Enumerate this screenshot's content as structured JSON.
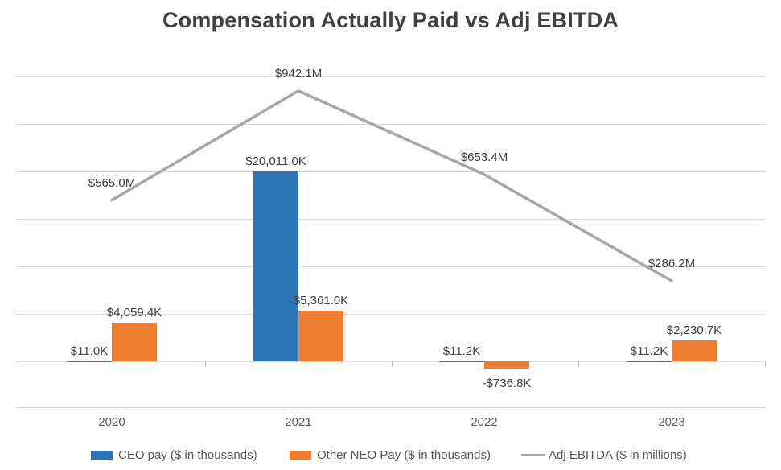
{
  "chart_data": {
    "type": "combo (bar + line)",
    "title": "Compensation Actually Paid vs Adj EBITDA",
    "categories": [
      "2020",
      "2021",
      "2022",
      "2023"
    ],
    "series": [
      {
        "name": "CEO pay ($ in thousands)",
        "type": "bar",
        "color": "#2E75B6",
        "unit": "K",
        "values": [
          11.0,
          20011.0,
          11.2,
          11.2
        ],
        "labels": [
          "$11.0K",
          "$20,011.0K",
          "$11.2K",
          "$11.2K"
        ]
      },
      {
        "name": "Other NEO Pay ($ in thousands)",
        "type": "bar",
        "color": "#ED7D31",
        "unit": "K",
        "values": [
          4059.4,
          5361.0,
          -736.8,
          2230.7
        ],
        "labels": [
          "$4,059.4K",
          "$5,361.0K",
          "-$736.8K",
          "$2,230.7K"
        ]
      },
      {
        "name": "Adj EBITDA ($ in millions)",
        "type": "line",
        "color": "#A6A6A6",
        "unit": "M",
        "values": [
          565.0,
          942.1,
          653.4,
          286.2
        ],
        "labels": [
          "$565.0M",
          "$942.1M",
          "$653.4M",
          "$286.2M"
        ]
      }
    ],
    "axes": {
      "primary": {
        "unit": "$ in thousands",
        "range": [
          -5000,
          30000
        ],
        "gridline_step": 5000,
        "tick_labels_visible": false
      },
      "secondary": {
        "unit": "$ in millions",
        "tick_labels_visible": false
      }
    },
    "grid": true,
    "legend_position": "bottom",
    "data_labels_visible": true,
    "colors": {
      "title_text": "#404040",
      "label_text": "#404040",
      "axis_text": "#595959",
      "gridline": "#D9D9D9"
    }
  }
}
